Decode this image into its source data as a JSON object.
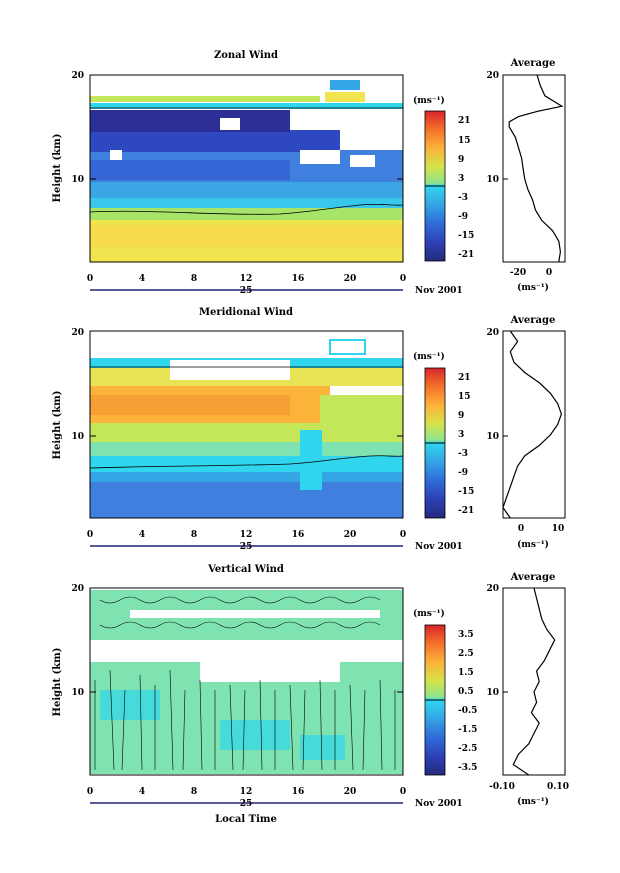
{
  "figure": {
    "xlabel": "Local Time",
    "date_label": "Nov 2001",
    "day_label": "25"
  },
  "panels": [
    {
      "title": "Zonal Wind",
      "ylabel": "Height (km)",
      "unit": "(ms⁻¹)",
      "avg_title": "Average",
      "colorbar_ticks": [
        "21",
        "15",
        "9",
        "3",
        "-3",
        "-9",
        "-15",
        "-21"
      ]
    },
    {
      "title": "Meridional Wind",
      "ylabel": "Height (km)",
      "unit": "(ms⁻¹)",
      "avg_title": "Average",
      "colorbar_ticks": [
        "21",
        "15",
        "9",
        "3",
        "-3",
        "-9",
        "-15",
        "-21"
      ]
    },
    {
      "title": "Vertical Wind",
      "ylabel": "Height (km)",
      "unit": "(ms⁻¹)",
      "avg_title": "Average",
      "colorbar_ticks": [
        "3.5",
        "2.5",
        "1.5",
        "0.5",
        "-0.5",
        "-1.5",
        "-2.5",
        "-3.5"
      ]
    }
  ],
  "chart_data": [
    {
      "type": "heatmap",
      "title": "Zonal Wind",
      "xlabel": "",
      "ylabel": "Height (km)",
      "x_ticks": [
        "0",
        "4",
        "8",
        "12",
        "16",
        "20",
        "0"
      ],
      "y_ticks": [
        "10",
        "20"
      ],
      "xlim": [
        0,
        24
      ],
      "ylim": [
        2,
        20
      ],
      "colorbar": {
        "unit": "(ms⁻¹)",
        "ticks": [
          21,
          15,
          9,
          3,
          -3,
          -9,
          -15,
          -21
        ]
      },
      "profile": {
        "title": "Average",
        "xlabel": "(ms⁻¹)",
        "x_ticks": [
          "-20",
          "0"
        ],
        "xlim": [
          -30,
          10
        ],
        "height": [
          2,
          3,
          4,
          5,
          6,
          7,
          8,
          9,
          10,
          11,
          12,
          13,
          14,
          15,
          15.5,
          16,
          16.5,
          17,
          18,
          19,
          20
        ],
        "values": [
          6,
          7,
          6,
          2,
          -5,
          -9,
          -11,
          -14,
          -16,
          -17,
          -18,
          -20,
          -22,
          -26,
          -26,
          -20,
          -8,
          8,
          -3,
          -6,
          -8
        ]
      }
    },
    {
      "type": "heatmap",
      "title": "Meridional Wind",
      "xlabel": "",
      "ylabel": "Height (km)",
      "x_ticks": [
        "0",
        "4",
        "8",
        "12",
        "16",
        "20",
        "0"
      ],
      "y_ticks": [
        "10",
        "20"
      ],
      "xlim": [
        0,
        24
      ],
      "ylim": [
        2,
        20
      ],
      "colorbar": {
        "unit": "(ms⁻¹)",
        "ticks": [
          21,
          15,
          9,
          3,
          -3,
          -9,
          -15,
          -21
        ]
      },
      "profile": {
        "title": "Average",
        "xlabel": "(ms⁻¹)",
        "x_ticks": [
          "0",
          "10"
        ],
        "xlim": [
          -5,
          12
        ],
        "height": [
          2,
          3,
          4,
          5,
          6,
          7,
          8,
          9,
          10,
          11,
          12,
          13,
          14,
          15,
          16,
          17,
          18,
          19,
          20
        ],
        "values": [
          -3,
          -5,
          -4,
          -3,
          -2,
          -1,
          1,
          5,
          8,
          10,
          11,
          10,
          8,
          5,
          1,
          -2,
          -3,
          -1,
          -3
        ]
      }
    },
    {
      "type": "heatmap",
      "title": "Vertical Wind",
      "xlabel": "Local Time",
      "ylabel": "Height (km)",
      "x_ticks": [
        "0",
        "4",
        "8",
        "12",
        "16",
        "20",
        "0"
      ],
      "y_ticks": [
        "10",
        "20"
      ],
      "xlim": [
        0,
        24
      ],
      "ylim": [
        2,
        20
      ],
      "colorbar": {
        "unit": "(ms⁻¹)",
        "ticks": [
          3.5,
          2.5,
          1.5,
          0.5,
          -0.5,
          -1.5,
          -2.5,
          -3.5
        ]
      },
      "profile": {
        "title": "Average",
        "xlabel": "(ms⁻¹)",
        "x_ticks": [
          "-0.10",
          "0.10"
        ],
        "xlim": [
          -0.12,
          0.12
        ],
        "height": [
          2,
          3,
          4,
          5,
          6,
          7,
          8,
          9,
          10,
          11,
          12,
          13,
          14,
          15,
          16,
          17,
          18,
          19,
          20
        ],
        "values": [
          -0.02,
          -0.08,
          -0.06,
          -0.02,
          0.0,
          0.02,
          -0.01,
          0.01,
          0.0,
          0.02,
          0.01,
          0.04,
          0.06,
          0.08,
          0.05,
          0.03,
          0.02,
          0.01,
          0.0
        ]
      }
    }
  ]
}
